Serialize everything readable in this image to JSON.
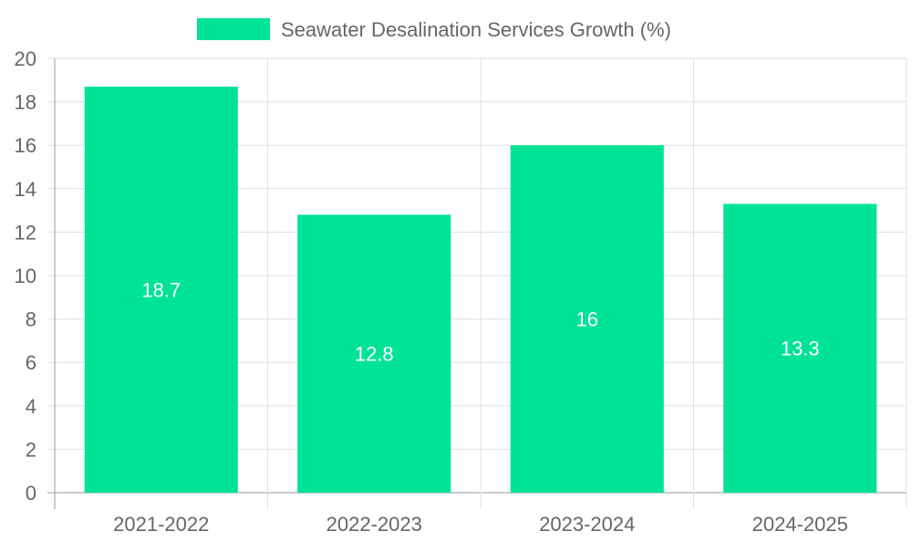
{
  "chart_data": {
    "type": "bar",
    "categories": [
      "2021-2022",
      "2022-2023",
      "2023-2024",
      "2024-2025"
    ],
    "series": [
      {
        "name": "Seawater Desalination Services Growth (%)",
        "values": [
          18.7,
          12.8,
          16,
          13.3
        ],
        "color": "#00e396"
      }
    ],
    "data_labels": [
      "18.7",
      "12.8",
      "16",
      "13.3"
    ],
    "ylim": [
      0,
      20
    ],
    "yticks": [
      0,
      2,
      4,
      6,
      8,
      10,
      12,
      14,
      16,
      18,
      20
    ],
    "grid": true,
    "legend_position": "top-center",
    "colors": {
      "grid": "#e0e0e0",
      "axis": "#999999",
      "tick_text": "#666666",
      "label_text": "#ffffff"
    }
  }
}
